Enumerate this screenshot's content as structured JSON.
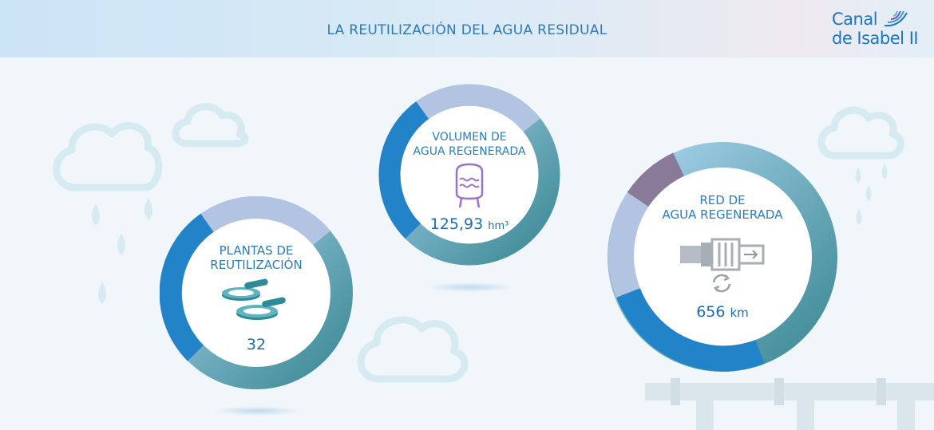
{
  "header": {
    "title": "LA REUTILIZACIÓN DEL AGUA RESIDUAL"
  },
  "logo": {
    "line1": "Canal",
    "line2": "de Isabel II"
  },
  "colors": {
    "accent": "#2481c8",
    "teal": "#3f8e9a",
    "lavender": "#b5c3e1",
    "light_blue": "#9fd0ef",
    "purple": "#8a7a9a"
  },
  "stats": [
    {
      "label_line1": "PLANTAS DE",
      "label_line2": "REUTILIZACIÓN",
      "value": "32",
      "unit": "",
      "icon": "treatment-plant-icon"
    },
    {
      "label_line1": "VOLUMEN DE",
      "label_line2": "AGUA REGENERADA",
      "value": "125,93",
      "unit": "hm³",
      "icon": "water-tank-icon"
    },
    {
      "label_line1": "RED DE",
      "label_line2": "AGUA REGENERADA",
      "value": "656",
      "unit": "km",
      "icon": "pipe-network-icon"
    }
  ]
}
